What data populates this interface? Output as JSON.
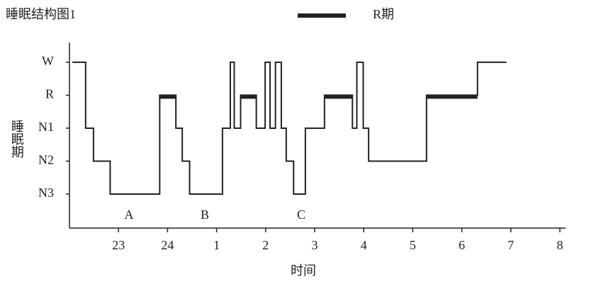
{
  "chart_data": {
    "type": "step-line",
    "title": "睡眠结构图1",
    "xlabel": "时间",
    "ylabel": "睡眠期",
    "x": [
      22.06,
      22.33,
      22.49,
      22.83,
      23.84,
      24.17,
      24.3,
      24.45,
      25.12,
      25.28,
      25.36,
      25.49,
      25.81,
      25.99,
      26.09,
      26.2,
      26.32,
      26.42,
      26.57,
      26.81,
      27.2,
      27.77,
      27.86,
      27.99,
      28.1,
      29.28,
      30.32,
      30.91
    ],
    "series": [
      {
        "name": "R期",
        "color": "#222222",
        "values": [
          4,
          2,
          1,
          0,
          3,
          2,
          1,
          0,
          2,
          4,
          2,
          3,
          2,
          4,
          2,
          4,
          2,
          1,
          0,
          2,
          3,
          2,
          4,
          2,
          1,
          3,
          4,
          4
        ]
      }
    ],
    "highlight_stage": 3,
    "xlim": [
      22,
      32
    ],
    "xticks": [
      {
        "value": 23,
        "label": "23"
      },
      {
        "value": 24,
        "label": "24"
      },
      {
        "value": 25,
        "label": "1"
      },
      {
        "value": 26,
        "label": "2"
      },
      {
        "value": 27,
        "label": "3"
      },
      {
        "value": 28,
        "label": "4"
      },
      {
        "value": 29,
        "label": "5"
      },
      {
        "value": 30,
        "label": "6"
      },
      {
        "value": 31,
        "label": "7"
      },
      {
        "value": 32,
        "label": "8"
      }
    ],
    "ylim": [
      -1,
      4.6
    ],
    "yticks": [
      {
        "value": 0,
        "label": "N3"
      },
      {
        "value": 1,
        "label": "N2"
      },
      {
        "value": 2,
        "label": "N1"
      },
      {
        "value": 3,
        "label": "R"
      },
      {
        "value": 4,
        "label": "W"
      }
    ],
    "annotations": [
      "A",
      "B",
      "C"
    ]
  }
}
